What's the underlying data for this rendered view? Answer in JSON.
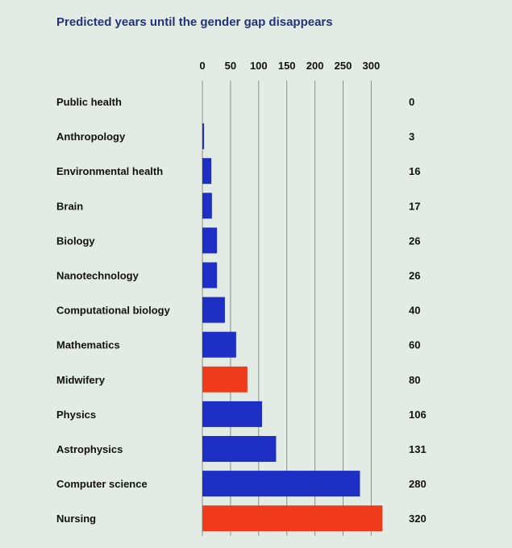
{
  "chart_data": {
    "type": "bar",
    "orientation": "horizontal",
    "title": "Predicted years until the gender gap disappears",
    "xlabel": "",
    "ylabel": "",
    "xlim": [
      0,
      320
    ],
    "ticks": [
      0,
      50,
      100,
      150,
      200,
      250,
      300
    ],
    "grid": true,
    "axis_position": "top",
    "categories": [
      "Public health",
      "Anthropology",
      "Environmental health",
      "Brain",
      "Biology",
      "Nanotechnology",
      "Computational biology",
      "Mathematics",
      "Midwifery",
      "Physics",
      "Astrophysics",
      "Computer science",
      "Nursing"
    ],
    "values": [
      0,
      3,
      16,
      17,
      26,
      26,
      40,
      60,
      80,
      106,
      131,
      280,
      320
    ],
    "value_labels": [
      "0",
      "3",
      "16",
      "17",
      "26",
      "26",
      "40",
      "60",
      "80",
      "106",
      "131",
      "280",
      "320"
    ],
    "bar_colors": [
      "#1e2fc4",
      "#1e2fc4",
      "#1e2fc4",
      "#1e2fc4",
      "#1e2fc4",
      "#1e2fc4",
      "#1e2fc4",
      "#1e2fc4",
      "#f03a1c",
      "#1e2fc4",
      "#1e2fc4",
      "#1e2fc4",
      "#f03a1c"
    ],
    "colors": {
      "male_dominated": "#1e2fc4",
      "female_dominated": "#f03a1c"
    }
  }
}
